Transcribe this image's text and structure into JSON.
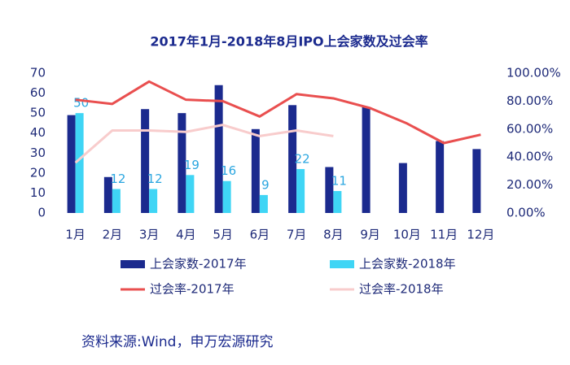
{
  "chart_data": {
    "type": "bar_line",
    "title": "2017年1月-2018年8月IPO上会家数及过会率",
    "categories": [
      "1月",
      "2月",
      "3月",
      "4月",
      "5月",
      "6月",
      "7月",
      "8月",
      "9月",
      "10月",
      "11月",
      "12月"
    ],
    "series": [
      {
        "name": "上会家数-2017年",
        "color": "#1b2a8e",
        "kind": "bar",
        "values": [
          49,
          18,
          52,
          50,
          64,
          42,
          54,
          23,
          53,
          25,
          36,
          32
        ]
      },
      {
        "name": "上会家数-2018年",
        "color": "#3fd5f5",
        "kind": "bar",
        "values": [
          50,
          12,
          12,
          19,
          16,
          9,
          22,
          11,
          null,
          null,
          null,
          null
        ],
        "data_labels": true
      },
      {
        "name": "过会率-2017年",
        "color": "#e94f4f",
        "kind": "line",
        "axis": "y2",
        "values": [
          81,
          78,
          94,
          81,
          80,
          69,
          85,
          82,
          75,
          64,
          50,
          56
        ]
      },
      {
        "name": "过会率-2018年",
        "color": "#f8cccc",
        "kind": "line",
        "axis": "y2",
        "values": [
          36,
          59,
          59,
          58,
          63,
          55,
          59,
          55,
          null,
          null,
          null,
          null
        ]
      }
    ],
    "ylim": [
      0,
      70
    ],
    "yticks": [
      0,
      10,
      20,
      30,
      40,
      50,
      60,
      70
    ],
    "y2lim": [
      0,
      100
    ],
    "y2ticks": [
      {
        "value": 0,
        "label": "0.00%"
      },
      {
        "value": 20,
        "label": "20.00%"
      },
      {
        "value": 40,
        "label": "40.00%"
      },
      {
        "value": 60,
        "label": "60.00%"
      },
      {
        "value": 80,
        "label": "80.00%"
      },
      {
        "value": 100,
        "label": "100.00%"
      }
    ],
    "grid": false,
    "legend": "bottom",
    "source": "资料来源:Wind，申万宏源研究"
  }
}
